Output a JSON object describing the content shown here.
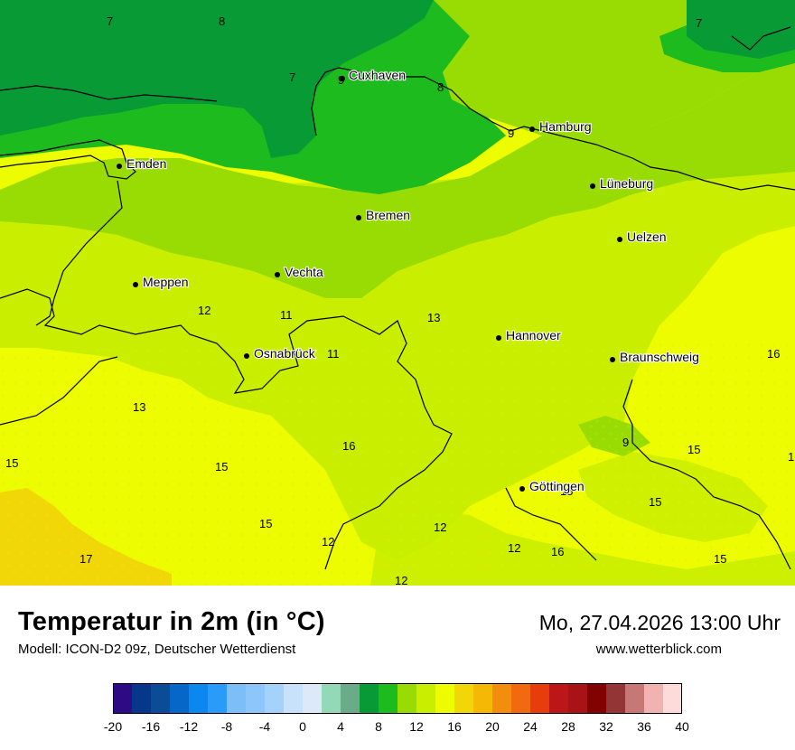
{
  "title": "Temperatur in 2m (in °C)",
  "model": "Modell: ICON-D2 09z, Deutscher Wetterdienst",
  "datetime": "Mo, 27.04.2026 13:00 Uhr",
  "website": "www.wetterblick.com",
  "cities": [
    {
      "name": "Cuxhaven"
    },
    {
      "name": "Hamburg"
    },
    {
      "name": "Emden"
    },
    {
      "name": "Lüneburg"
    },
    {
      "name": "Bremen"
    },
    {
      "name": "Uelzen"
    },
    {
      "name": "Vechta"
    },
    {
      "name": "Meppen"
    },
    {
      "name": "Hannover"
    },
    {
      "name": "Osnabrück"
    },
    {
      "name": "Braunschweig"
    },
    {
      "name": "Göttingen"
    }
  ],
  "temperature_labels": [
    "7",
    "8",
    "7",
    "7",
    "9",
    "8",
    "9",
    "12",
    "11",
    "13",
    "11",
    "16",
    "13",
    "15",
    "15",
    "16",
    "15",
    "12",
    "12",
    "9",
    "15",
    "15",
    "15",
    "17",
    "12",
    "16",
    "15",
    "12",
    "1"
  ],
  "scale": {
    "ticks": [
      "-20",
      "-16",
      "-12",
      "-8",
      "-4",
      "0",
      "4",
      "8",
      "12",
      "16",
      "20",
      "24",
      "28",
      "32",
      "36",
      "40"
    ],
    "colors": [
      "#2e0a84",
      "#06378a",
      "#0a4d96",
      "#0767c8",
      "#0a88f0",
      "#2a9bf8",
      "#7cbef7",
      "#8cc6fa",
      "#a4d2fb",
      "#c8e2fb",
      "#dce9f7",
      "#93d9b8",
      "#6aab8a",
      "#079a35",
      "#1dbb1e",
      "#98dc04",
      "#c9ee00",
      "#eefc00",
      "#f1d707",
      "#f4b805",
      "#f38d0e",
      "#f26a10",
      "#e73c0c",
      "#bc1718",
      "#a81318",
      "#820202",
      "#913535",
      "#c77776",
      "#f0b3b1",
      "#fcdbda"
    ]
  }
}
